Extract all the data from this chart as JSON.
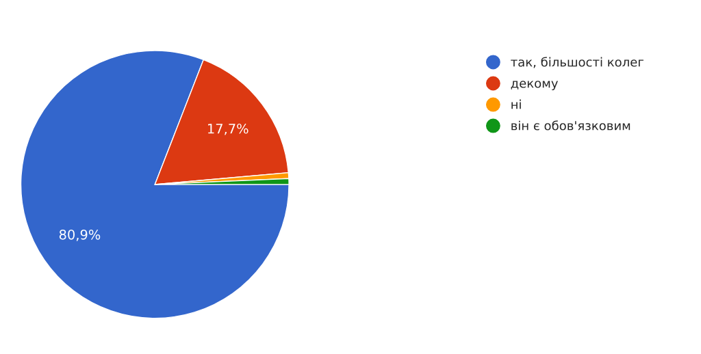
{
  "chart_data": {
    "type": "pie",
    "categories": [
      "так, більшості колег",
      "декому",
      "ні",
      "він є обов'язковим"
    ],
    "values": [
      80.9,
      17.7,
      0.7,
      0.7
    ],
    "colors": [
      "#3366cc",
      "#dc3912",
      "#ff9900",
      "#109618"
    ],
    "value_labels": [
      "80,9%",
      "17,7%",
      null,
      null
    ],
    "legend": "top right"
  }
}
